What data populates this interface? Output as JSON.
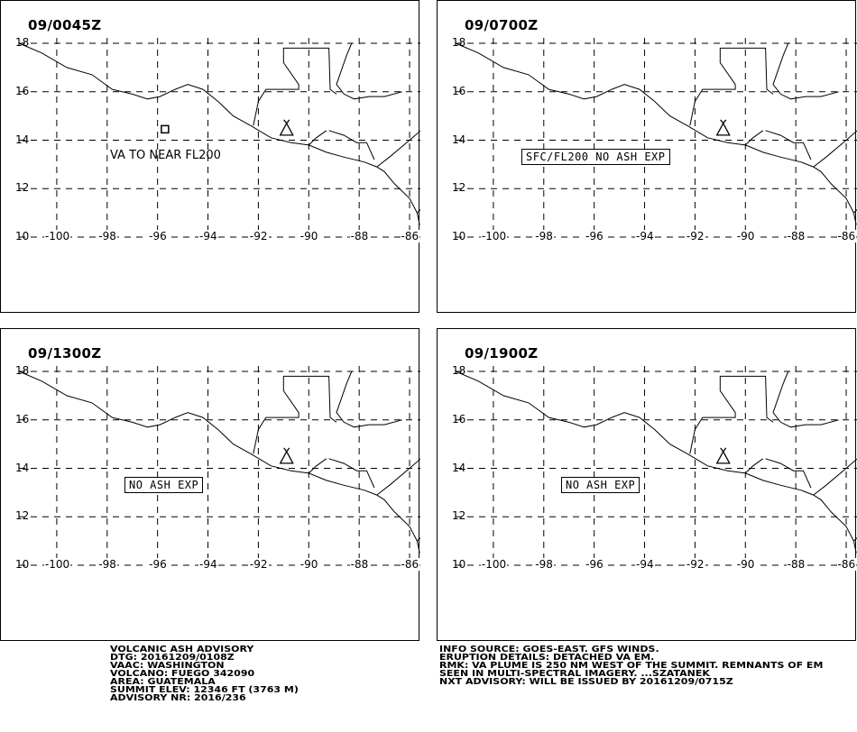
{
  "panels": [
    {
      "time": "09/0045Z",
      "annotation": "VA TO NEAR FL200",
      "annotation_style": "plain",
      "show_plume_box": true
    },
    {
      "time": "09/0700Z",
      "annotation": "SFC/FL200 NO ASH EXP",
      "annotation_style": "boxed",
      "show_plume_box": false
    },
    {
      "time": "09/1300Z",
      "annotation": "NO ASH EXP",
      "annotation_style": "boxed",
      "show_plume_box": false
    },
    {
      "time": "09/1900Z",
      "annotation": "NO ASH EXP",
      "annotation_style": "boxed",
      "show_plume_box": false
    }
  ],
  "map": {
    "lat_labels": [
      "18",
      "16",
      "14",
      "12",
      "10"
    ],
    "lon_labels": [
      "-100",
      "-98",
      "-96",
      "-94",
      "-92",
      "-90",
      "-88",
      "-86"
    ],
    "lat_range": [
      18,
      10
    ],
    "lon_range": [
      -101.5,
      -85.5
    ],
    "volcano_icon": "volcano-triangle-icon",
    "volcano_position": {
      "lat": 14.47,
      "lon": -90.88
    }
  },
  "advisory_left": [
    "VOLCANIC ASH ADVISORY",
    "DTG: 20161209/0108Z",
    "VAAC: WASHINGTON",
    "VOLCANO: FUEGO 342090",
    "AREA: GUATEMALA",
    "SUMMIT ELEV: 12346 FT (3763 M)",
    "ADVISORY NR: 2016/236"
  ],
  "advisory_right": [
    "INFO SOURCE: GOES-EAST. GFS WINDS.",
    "ERUPTION DETAILS: DETACHED VA EM.",
    "RMK: VA PLUME IS 250 NM WEST OF THE SUMMIT. REMNANTS OF EM",
    "SEEN IN MULTI-SPECTRAL IMAGERY. ...SZATANEK",
    "NXT ADVISORY: WILL BE ISSUED BY 20161209/0715Z"
  ]
}
